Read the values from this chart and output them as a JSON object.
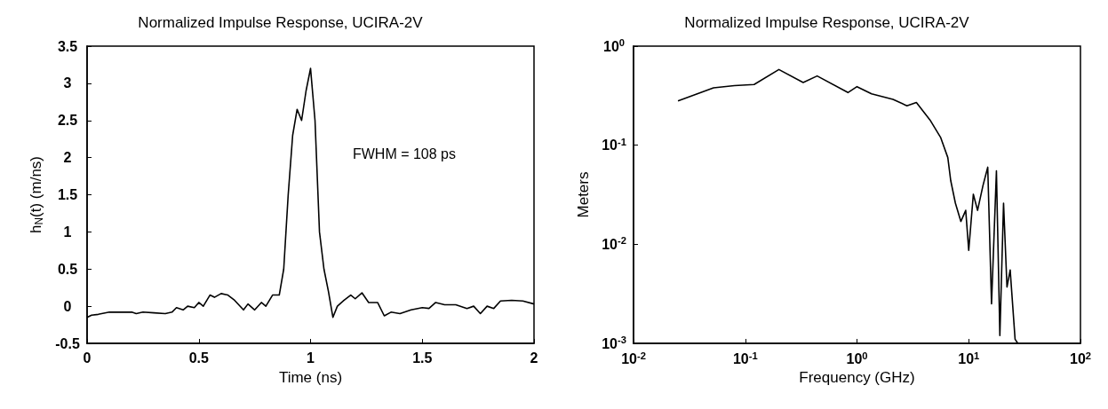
{
  "chart_data": [
    {
      "type": "line",
      "title": "Normalized Impulse Response, UCIRA-2V",
      "xlabel": "Time (ns)",
      "ylabel": "h$_{N}$(t) (m/ns)",
      "annotations": [
        "FWHM = 108 ps"
      ],
      "xlim": [
        0,
        2
      ],
      "ylim": [
        -0.5,
        3.5
      ],
      "xticks": [
        0,
        0.5,
        1,
        1.5,
        2
      ],
      "yticks": [
        -0.5,
        0,
        0.5,
        1,
        1.5,
        2,
        2.5,
        3,
        3.5
      ],
      "grid": false,
      "series": [
        {
          "color": "#000000",
          "x": [
            0,
            0.02,
            0.05,
            0.1,
            0.15,
            0.2,
            0.22,
            0.25,
            0.3,
            0.35,
            0.38,
            0.4,
            0.43,
            0.45,
            0.48,
            0.5,
            0.52,
            0.55,
            0.57,
            0.6,
            0.63,
            0.66,
            0.7,
            0.72,
            0.75,
            0.78,
            0.8,
            0.83,
            0.86,
            0.88,
            0.9,
            0.92,
            0.94,
            0.96,
            0.98,
            1.0,
            1.02,
            1.04,
            1.06,
            1.08,
            1.1,
            1.12,
            1.15,
            1.18,
            1.2,
            1.23,
            1.26,
            1.3,
            1.33,
            1.36,
            1.4,
            1.45,
            1.5,
            1.53,
            1.56,
            1.6,
            1.65,
            1.7,
            1.73,
            1.76,
            1.79,
            1.82,
            1.85,
            1.9,
            1.95,
            2.0
          ],
          "values": [
            -0.15,
            -0.12,
            -0.11,
            -0.08,
            -0.08,
            -0.08,
            -0.1,
            -0.08,
            -0.09,
            -0.1,
            -0.08,
            -0.02,
            -0.05,
            0.0,
            -0.02,
            0.05,
            0.0,
            0.15,
            0.12,
            0.17,
            0.15,
            0.08,
            -0.05,
            0.03,
            -0.05,
            0.05,
            0.0,
            0.15,
            0.15,
            0.5,
            1.5,
            2.3,
            2.65,
            2.5,
            2.9,
            3.2,
            2.5,
            1.0,
            0.5,
            0.2,
            -0.15,
            0.0,
            0.08,
            0.15,
            0.1,
            0.18,
            0.05,
            0.05,
            -0.13,
            -0.08,
            -0.1,
            -0.05,
            -0.02,
            -0.03,
            0.05,
            0.02,
            0.02,
            -0.03,
            0.0,
            -0.1,
            0.0,
            -0.03,
            0.07,
            0.08,
            0.07,
            0.03
          ]
        }
      ]
    },
    {
      "type": "line",
      "title": "Normalized Impulse Response, UCIRA-2V",
      "xlabel": "Frequency (GHz)",
      "ylabel": "Meters",
      "log": "xy",
      "xlim": [
        0.01,
        100
      ],
      "ylim": [
        0.001,
        1
      ],
      "xticks": [
        {
          "value": 0.01,
          "label": "10$^{-2}$"
        },
        {
          "value": 0.1,
          "label": "10$^{-1}$"
        },
        {
          "value": 1,
          "label": "10$^{0}$"
        },
        {
          "value": 10,
          "label": "10$^{1}$"
        },
        {
          "value": 100,
          "label": "10$^{2}$"
        }
      ],
      "yticks": [
        {
          "value": 0.001,
          "label": "10$^{-3}$"
        },
        {
          "value": 0.01,
          "label": "10$^{-2}$"
        },
        {
          "value": 0.1,
          "label": "10$^{-1}$"
        },
        {
          "value": 1,
          "label": "10$^{0}$"
        }
      ],
      "grid": false,
      "series": [
        {
          "color": "#000000",
          "x": [
            0.025,
            0.052,
            0.08,
            0.12,
            0.2,
            0.33,
            0.44,
            0.83,
            1.0,
            1.35,
            2.1,
            2.8,
            3.4,
            4.5,
            5.6,
            6.5,
            6.9,
            7.6,
            8.5,
            9.4,
            10,
            11,
            12,
            13.4,
            14.8,
            16,
            17.7,
            19,
            20.5,
            22,
            23.5,
            26,
            27.5
          ],
          "values": [
            0.28,
            0.38,
            0.4,
            0.41,
            0.58,
            0.43,
            0.5,
            0.34,
            0.39,
            0.33,
            0.29,
            0.25,
            0.27,
            0.18,
            0.12,
            0.075,
            0.044,
            0.026,
            0.017,
            0.022,
            0.0087,
            0.032,
            0.022,
            0.039,
            0.06,
            0.0025,
            0.055,
            0.0012,
            0.026,
            0.0037,
            0.0055,
            0.0011,
            0.001
          ]
        }
      ]
    }
  ]
}
